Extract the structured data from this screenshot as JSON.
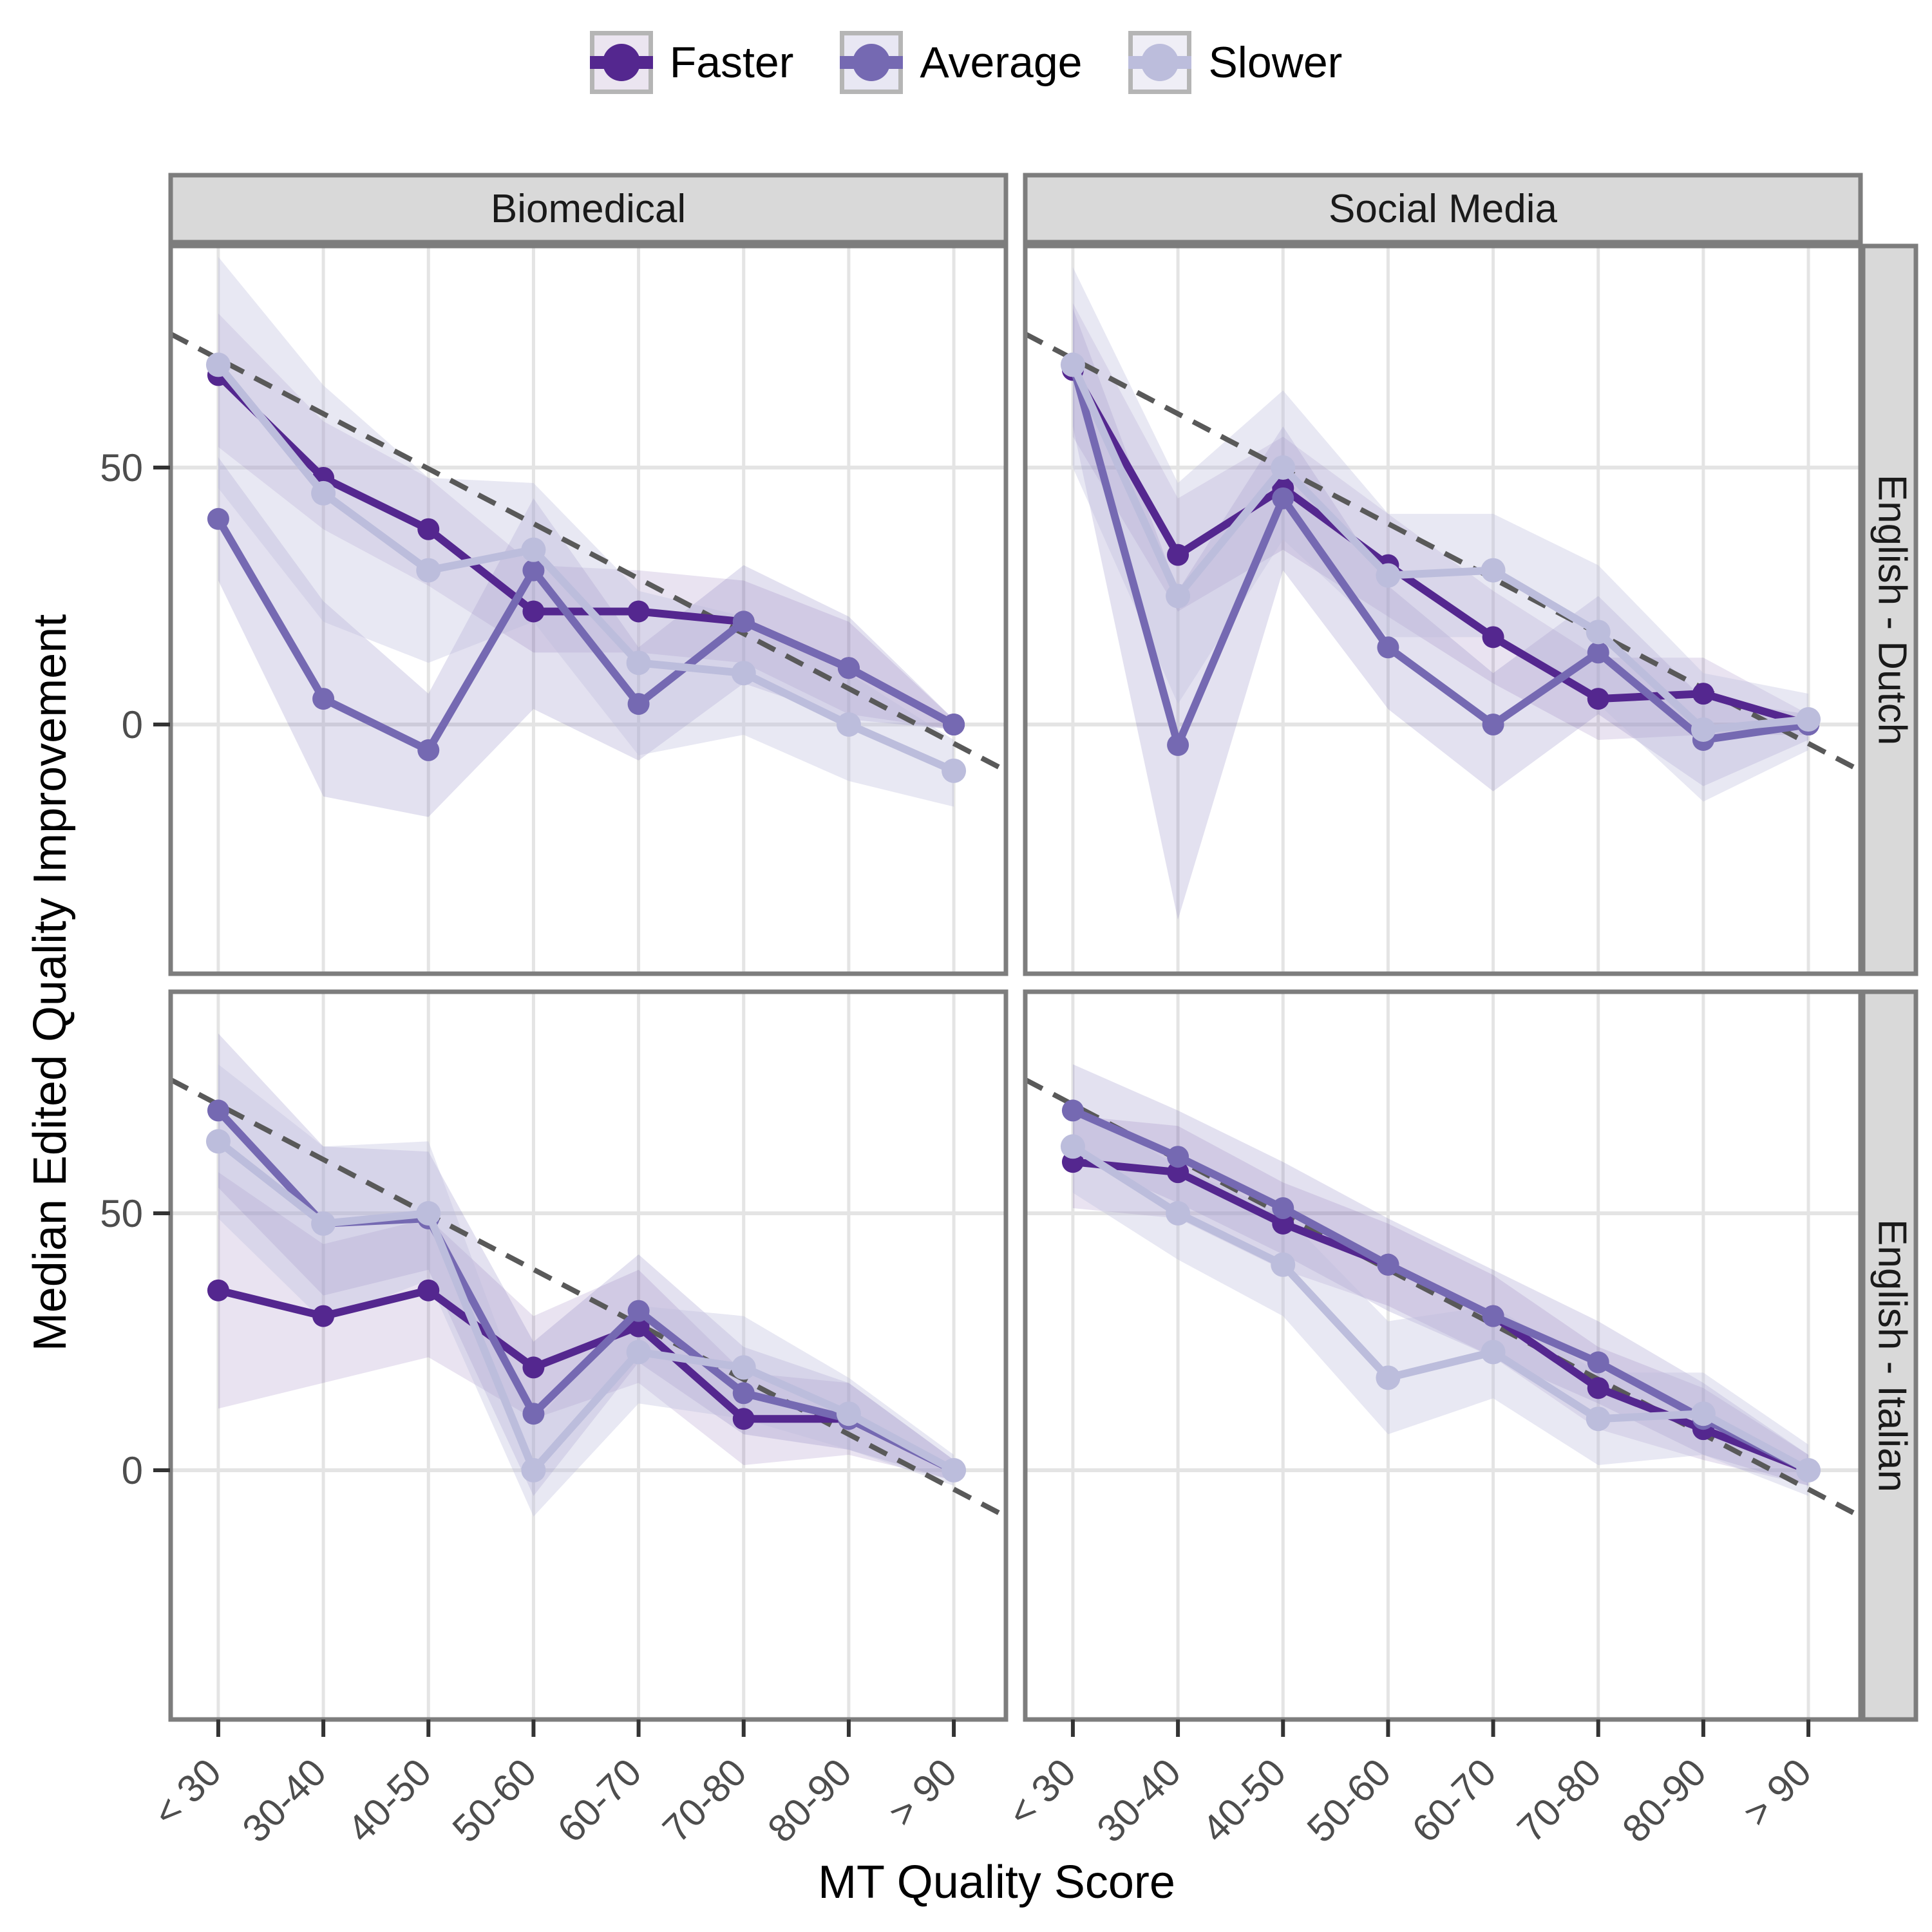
{
  "legend": {
    "items": [
      {
        "label": "Faster",
        "key": "faster"
      },
      {
        "label": "Average",
        "key": "average"
      },
      {
        "label": "Slower",
        "key": "slower"
      }
    ]
  },
  "colors": {
    "faster": "#54278F",
    "average": "#7569B2",
    "slower": "#BCBDDC",
    "ribbon_faster": "rgba(84,39,143,0.13)",
    "ribbon_average": "rgba(117,105,178,0.20)",
    "ribbon_slower": "rgba(188,189,220,0.35)",
    "key_bg_faster": "#ebe5f0",
    "key_bg_average": "#e8e7f3",
    "key_bg_slower": "#efeef6",
    "strip_bg": "#D9D9D9",
    "panel_border": "#7D7D7D",
    "grid": "#E4E4E4",
    "tick_text": "#4D4D4D",
    "tick_mark": "#333333",
    "dashed": "#595959",
    "strip_text": "#1A1A1A"
  },
  "chart_data": {
    "type": "line",
    "title": "",
    "x_label": "MT Quality Score",
    "y_label": "Median Edited Quality Improvement",
    "categories": [
      "< 30",
      "30-40",
      "40-50",
      "50-60",
      "60-70",
      "70-80",
      "80-90",
      "> 90"
    ],
    "y_ticks": [
      50,
      0
    ],
    "y_range": [
      -46,
      93
    ],
    "grid": "on",
    "legend_position": "top",
    "col_facets": [
      "Biomedical",
      "Social Media"
    ],
    "row_facets": [
      "English - Dutch",
      "English - Italian"
    ],
    "reference_line": {
      "style": "dashed",
      "value_at_left_edge": 76,
      "value_at_right_edge": -9
    },
    "panels": [
      {
        "domain": "Biomedical",
        "language_pair": "English - Dutch",
        "series": [
          {
            "name": "Faster",
            "values": [
              68,
              48,
              38,
              22,
              22,
              20,
              11,
              0
            ],
            "lower": [
              54,
              38,
              27,
              14,
              14,
              12,
              2,
              -1
            ],
            "upper": [
              80,
              59,
              48,
              31,
              30,
              28,
              20,
              1
            ]
          },
          {
            "name": "Average",
            "values": [
              40,
              5,
              -5,
              30,
              4,
              20,
              11,
              0
            ],
            "lower": [
              28,
              -14,
              -18,
              3,
              -7,
              8,
              1,
              -1
            ],
            "upper": [
              52,
              24,
              6,
              44,
              15,
              31,
              21,
              1
            ]
          },
          {
            "name": "Slower",
            "values": [
              70,
              45,
              30,
              34,
              12,
              10,
              0,
              -9
            ],
            "lower": [
              46,
              20,
              12,
              20,
              -6,
              -2,
              -11,
              -16
            ],
            "upper": [
              91,
              66,
              48,
              47,
              26,
              21,
              10,
              -3
            ]
          }
        ]
      },
      {
        "domain": "Social Media",
        "language_pair": "English - Dutch",
        "series": [
          {
            "name": "Faster",
            "values": [
              69,
              33,
              46,
              31,
              17,
              5,
              6,
              0
            ],
            "lower": [
              56,
              22,
              34,
              21,
              8,
              -3,
              -2,
              -2
            ],
            "upper": [
              82,
              44,
              56,
              41,
              26,
              13,
              13,
              2
            ]
          },
          {
            "name": "Average",
            "values": [
              70,
              -4,
              44,
              15,
              0,
              14,
              -3,
              0
            ],
            "lower": [
              58,
              -38,
              30,
              3,
              -13,
              2,
              -12,
              -3
            ],
            "upper": [
              81,
              26,
              58,
              27,
              10,
              25,
              5,
              2
            ]
          },
          {
            "name": "Slower",
            "values": [
              70,
              25,
              50,
              29,
              30,
              18,
              -1,
              1
            ],
            "lower": [
              50,
              4,
              36,
              17,
              17,
              4,
              -15,
              -5
            ],
            "upper": [
              89,
              47,
              65,
              41,
              41,
              31,
              10,
              6
            ]
          }
        ]
      },
      {
        "domain": "Biomedical",
        "language_pair": "English - Italian",
        "series": [
          {
            "name": "Faster",
            "values": [
              35,
              30,
              35,
              20,
              28,
              10,
              10,
              0
            ],
            "lower": [
              12,
              17,
              22,
              10,
              17,
              1,
              3,
              -2
            ],
            "upper": [
              58,
              44,
              49,
              30,
              39,
              19,
              17,
              2
            ]
          },
          {
            "name": "Average",
            "values": [
              70,
              48,
              49,
              11,
              31,
              15,
              10,
              0
            ],
            "lower": [
              55,
              34,
              39,
              -5,
              21,
              7,
              4,
              -2
            ],
            "upper": [
              85,
              63,
              62,
              25,
              42,
              24,
              17,
              2
            ]
          },
          {
            "name": "Slower",
            "values": [
              64,
              48,
              50,
              0,
              23,
              20,
              11,
              0
            ],
            "lower": [
              49,
              29,
              37,
              -9,
              13,
              10,
              4,
              -3
            ],
            "upper": [
              79,
              63,
              64,
              9,
              32,
              30,
              18,
              3
            ]
          }
        ]
      },
      {
        "domain": "Social Media",
        "language_pair": "English - Italian",
        "series": [
          {
            "name": "Faster",
            "values": [
              60,
              58,
              48,
              40,
              30,
              16,
              8,
              0
            ],
            "lower": [
              51,
              49,
              39,
              32,
              22,
              8,
              2,
              -3
            ],
            "upper": [
              69,
              67,
              56,
              48,
              38,
              24,
              16,
              3
            ]
          },
          {
            "name": "Average",
            "values": [
              70,
              61,
              51,
              40,
              30,
              21,
              10,
              0
            ],
            "lower": [
              61,
              52,
              42,
              31,
              22,
              13,
              3,
              -3
            ],
            "upper": [
              79,
              70,
              60,
              49,
              39,
              29,
              17,
              3
            ]
          },
          {
            "name": "Slower",
            "values": [
              63,
              50,
              40,
              18,
              23,
              10,
              11,
              0
            ],
            "lower": [
              54,
              41,
              30,
              7,
              14,
              1,
              3,
              -5
            ],
            "upper": [
              72,
              59,
              50,
              29,
              32,
              19,
              19,
              5
            ]
          }
        ]
      }
    ]
  }
}
